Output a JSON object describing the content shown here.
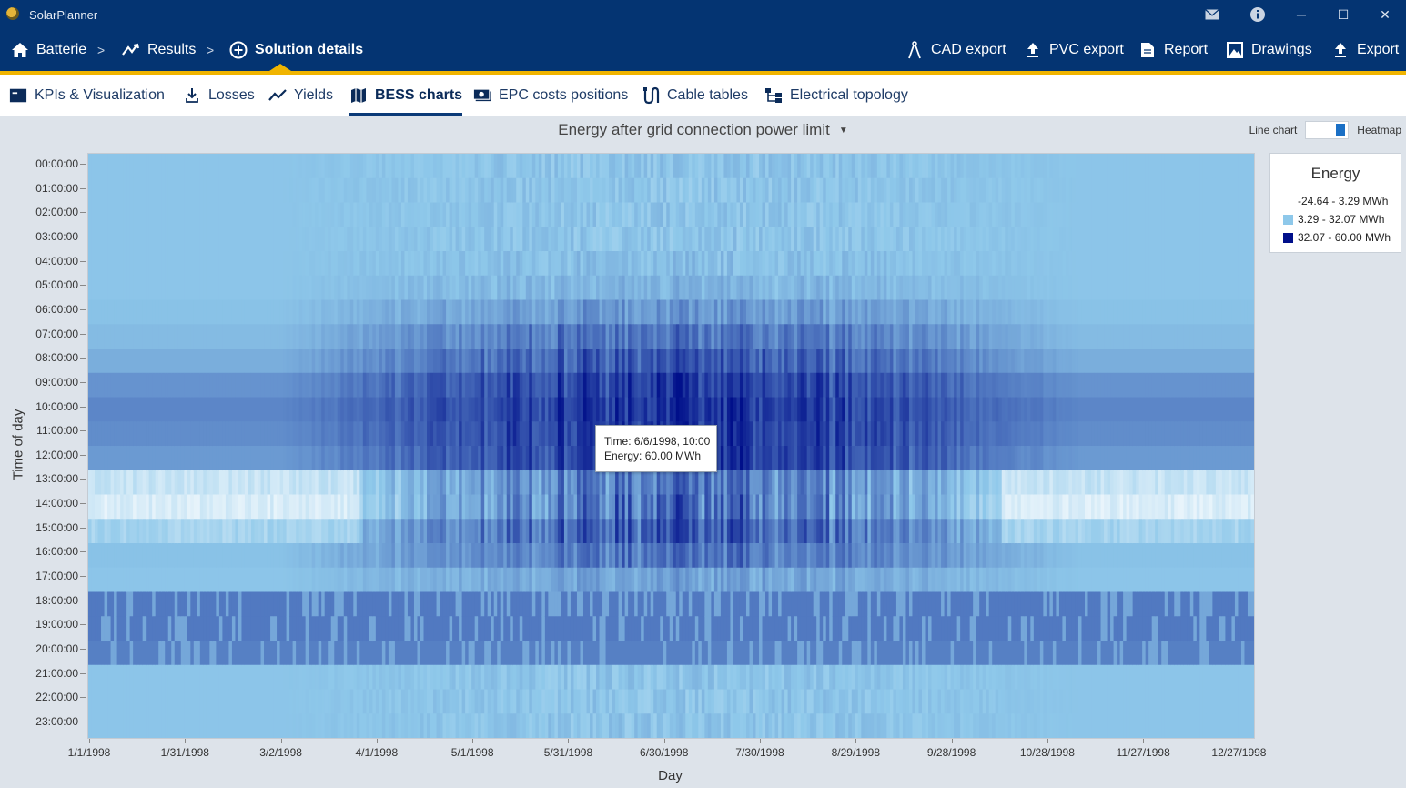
{
  "app": {
    "title": "SolarPlanner"
  },
  "window_controls": {
    "mail_icon": "mail-icon",
    "info_icon": "info-icon",
    "minimize": "─",
    "maximize": "☐",
    "close": "✕"
  },
  "breadcrumb": {
    "items": [
      {
        "label": "Batterie",
        "icon": "home-icon"
      },
      {
        "label": "Results",
        "icon": "trend-icon"
      },
      {
        "label": "Solution details",
        "icon": "plus-circle-icon"
      }
    ],
    "separator": ">"
  },
  "actions": [
    {
      "label": "CAD export",
      "icon": "compass-icon"
    },
    {
      "label": "PVC export",
      "icon": "upload-icon"
    },
    {
      "label": "Report",
      "icon": "document-icon"
    },
    {
      "label": "Drawings",
      "icon": "image-icon"
    },
    {
      "label": "Export",
      "icon": "upload-icon"
    }
  ],
  "tabs": [
    {
      "label": "KPIs & Visualization",
      "icon": "dashboard-icon"
    },
    {
      "label": "Losses",
      "icon": "download-icon"
    },
    {
      "label": "Yields",
      "icon": "line-chart-icon"
    },
    {
      "label": "BESS charts",
      "icon": "map-icon",
      "active": true
    },
    {
      "label": "EPC costs positions",
      "icon": "money-icon"
    },
    {
      "label": "Cable tables",
      "icon": "cable-icon"
    },
    {
      "label": "Electrical topology",
      "icon": "topology-icon"
    }
  ],
  "chart_header": {
    "title": "Energy after grid connection power limit",
    "toggle_left": "Line chart",
    "toggle_right": "Heatmap"
  },
  "tooltip": {
    "time": "Time: 6/6/1998, 10:00",
    "energy": "Energy: 60.00 MWh"
  },
  "legend": {
    "title": "Energy",
    "items": [
      {
        "label": "-24.64 - 3.29 MWh",
        "color": "#ffffff"
      },
      {
        "label": "3.29 - 32.07 MWh",
        "color": "#8ec8ea"
      },
      {
        "label": "32.07 - 60.00 MWh",
        "color": "#000f8a"
      }
    ]
  },
  "chart_data": {
    "type": "heatmap",
    "title": "Energy after grid connection power limit",
    "xlabel": "Day",
    "ylabel": "Time of day",
    "x_tick_labels": [
      "1/1/1998",
      "1/31/1998",
      "3/2/1998",
      "4/1/1998",
      "5/1/1998",
      "5/31/1998",
      "6/30/1998",
      "7/30/1998",
      "8/29/1998",
      "9/28/1998",
      "10/28/1998",
      "11/27/1998",
      "12/27/1998"
    ],
    "y_tick_labels": [
      "00:00:00",
      "01:00:00",
      "02:00:00",
      "03:00:00",
      "04:00:00",
      "05:00:00",
      "06:00:00",
      "07:00:00",
      "08:00:00",
      "09:00:00",
      "10:00:00",
      "11:00:00",
      "12:00:00",
      "13:00:00",
      "14:00:00",
      "15:00:00",
      "16:00:00",
      "17:00:00",
      "18:00:00",
      "19:00:00",
      "20:00:00",
      "21:00:00",
      "22:00:00",
      "23:00:00"
    ],
    "x_range": [
      "1/1/1998",
      "12/31/1998"
    ],
    "hours": 24,
    "color_scale": {
      "min_color": "#ffffff",
      "mid_color": "#8ec8ea",
      "max_color": "#000f8a",
      "min": -24.64,
      "max": 60.0
    },
    "hourly_profile_mwh": [
      {
        "hour": 0,
        "typical_mwh": 5,
        "peak_summer_mwh": 5
      },
      {
        "hour": 1,
        "typical_mwh": 5,
        "peak_summer_mwh": 5
      },
      {
        "hour": 2,
        "typical_mwh": 5,
        "peak_summer_mwh": 5
      },
      {
        "hour": 3,
        "typical_mwh": 5,
        "peak_summer_mwh": 5
      },
      {
        "hour": 4,
        "typical_mwh": 5,
        "peak_summer_mwh": 8
      },
      {
        "hour": 5,
        "typical_mwh": 5,
        "peak_summer_mwh": 12
      },
      {
        "hour": 6,
        "typical_mwh": 6,
        "peak_summer_mwh": 25
      },
      {
        "hour": 7,
        "typical_mwh": 8,
        "peak_summer_mwh": 40
      },
      {
        "hour": 8,
        "typical_mwh": 12,
        "peak_summer_mwh": 50
      },
      {
        "hour": 9,
        "typical_mwh": 20,
        "peak_summer_mwh": 58
      },
      {
        "hour": 10,
        "typical_mwh": 24,
        "peak_summer_mwh": 60
      },
      {
        "hour": 11,
        "typical_mwh": 22,
        "peak_summer_mwh": 60
      },
      {
        "hour": 12,
        "typical_mwh": 18,
        "peak_summer_mwh": 60
      },
      {
        "hour": 13,
        "typical_mwh": -10,
        "peak_summer_mwh": 45
      },
      {
        "hour": 14,
        "typical_mwh": -15,
        "peak_summer_mwh": 50
      },
      {
        "hour": 15,
        "typical_mwh": -2,
        "peak_summer_mwh": 55
      },
      {
        "hour": 16,
        "typical_mwh": 6,
        "peak_summer_mwh": 40
      },
      {
        "hour": 17,
        "typical_mwh": 5,
        "peak_summer_mwh": 20
      },
      {
        "hour": 18,
        "typical_mwh": 28,
        "peak_summer_mwh": 28
      },
      {
        "hour": 19,
        "typical_mwh": 28,
        "peak_summer_mwh": 28
      },
      {
        "hour": 20,
        "typical_mwh": 26,
        "peak_summer_mwh": 26
      },
      {
        "hour": 21,
        "typical_mwh": 5,
        "peak_summer_mwh": 5
      },
      {
        "hour": 22,
        "typical_mwh": 5,
        "peak_summer_mwh": 5
      },
      {
        "hour": 23,
        "typical_mwh": 5,
        "peak_summer_mwh": 5
      }
    ]
  }
}
